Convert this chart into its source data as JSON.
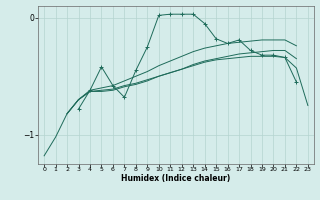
{
  "xlabel": "Humidex (Indice chaleur)",
  "x_values": [
    0,
    1,
    2,
    3,
    4,
    5,
    6,
    7,
    8,
    9,
    10,
    11,
    12,
    13,
    14,
    15,
    16,
    17,
    18,
    19,
    20,
    21,
    22,
    23
  ],
  "line_zigzag": [
    null,
    null,
    null,
    -0.78,
    -0.62,
    -0.42,
    -0.58,
    -0.68,
    -0.45,
    -0.25,
    0.02,
    0.03,
    0.03,
    0.03,
    -0.05,
    -0.18,
    -0.22,
    -0.19,
    -0.28,
    -0.32,
    -0.32,
    -0.34,
    -0.55,
    null
  ],
  "line_upper": [
    null,
    null,
    -0.82,
    -0.7,
    -0.62,
    -0.6,
    -0.58,
    -0.54,
    -0.5,
    -0.46,
    -0.41,
    -0.37,
    -0.33,
    -0.29,
    -0.26,
    -0.24,
    -0.22,
    -0.21,
    -0.2,
    -0.19,
    -0.19,
    -0.19,
    -0.24,
    null
  ],
  "line_mid": [
    null,
    null,
    -0.82,
    -0.7,
    -0.63,
    -0.63,
    -0.62,
    -0.59,
    -0.57,
    -0.54,
    -0.5,
    -0.47,
    -0.44,
    -0.4,
    -0.37,
    -0.35,
    -0.33,
    -0.31,
    -0.3,
    -0.29,
    -0.28,
    -0.28,
    -0.35,
    null
  ],
  "line_bottom": [
    -1.18,
    -1.02,
    -0.82,
    -0.7,
    -0.63,
    -0.62,
    -0.61,
    -0.58,
    -0.56,
    -0.53,
    -0.5,
    -0.47,
    -0.44,
    -0.41,
    -0.38,
    -0.36,
    -0.35,
    -0.34,
    -0.33,
    -0.33,
    -0.33,
    -0.34,
    -0.43,
    -0.75
  ],
  "background_color": "#d5ecea",
  "line_color": "#1e6b5a",
  "grid_color": "#b5d5d0",
  "ylim": [
    -1.25,
    0.1
  ],
  "xlim": [
    -0.5,
    23.5
  ],
  "yticks": [
    -1,
    0
  ],
  "xticks": [
    0,
    1,
    2,
    3,
    4,
    5,
    6,
    7,
    8,
    9,
    10,
    11,
    12,
    13,
    14,
    15,
    16,
    17,
    18,
    19,
    20,
    21,
    22,
    23
  ],
  "figsize": [
    3.2,
    2.0
  ],
  "dpi": 100
}
